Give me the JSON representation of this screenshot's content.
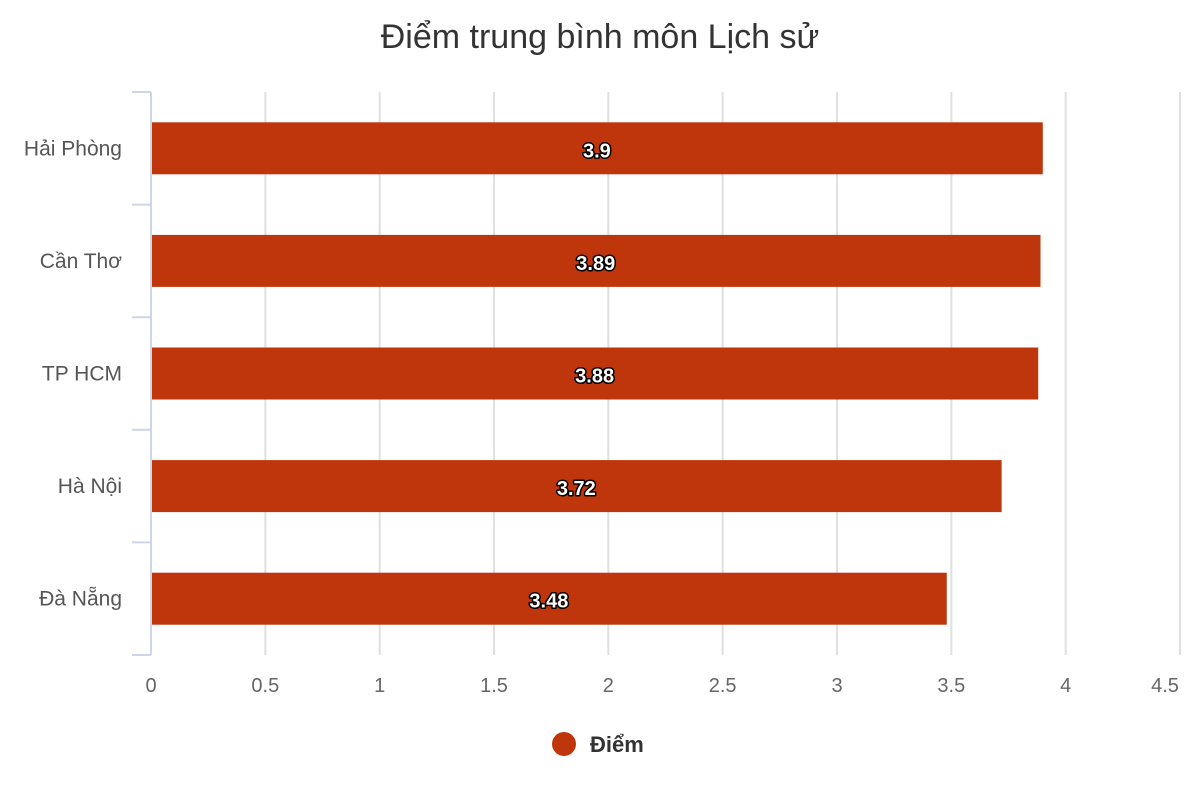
{
  "chart_data": {
    "type": "bar",
    "orientation": "horizontal",
    "title": "Điểm trung bình môn Lịch sử",
    "categories": [
      "Hải Phòng",
      "Cần Thơ",
      "TP HCM",
      "Hà Nội",
      "Đà Nẵng"
    ],
    "series": [
      {
        "name": "Điểm",
        "color": "#bf360c",
        "values": [
          3.9,
          3.89,
          3.88,
          3.72,
          3.48
        ],
        "data_labels": [
          "3.9",
          "3.89",
          "3.88",
          "3.72",
          "3.48"
        ]
      }
    ],
    "xlim": [
      0,
      4.5
    ],
    "x_ticks": [
      0,
      0.5,
      1,
      1.5,
      2,
      2.5,
      3,
      3.5,
      4,
      4.5
    ],
    "x_tick_labels": [
      "0",
      "0.5",
      "1",
      "1.5",
      "2",
      "2.5",
      "3",
      "3.5",
      "4",
      "4.5"
    ],
    "grid": true,
    "legend": "bottom-center"
  }
}
